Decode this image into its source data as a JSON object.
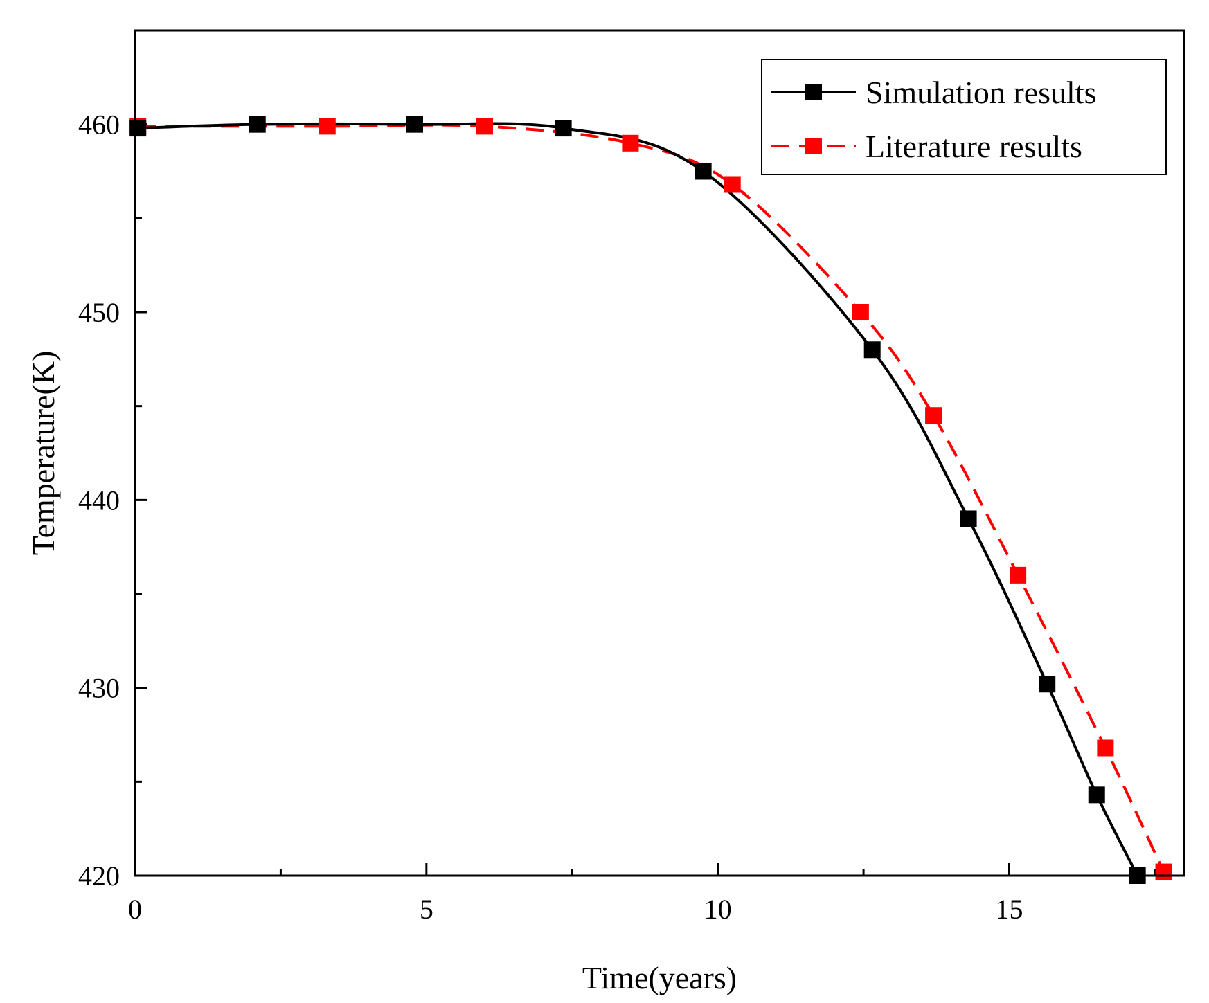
{
  "chart_data": {
    "type": "line",
    "title": "",
    "xlabel": "Time(years)",
    "ylabel": "Temperature(K)",
    "xlim": [
      0,
      18
    ],
    "ylim": [
      420,
      465
    ],
    "x_ticks": [
      0,
      5,
      10,
      15
    ],
    "y_ticks": [
      420,
      430,
      440,
      450,
      460
    ],
    "grid": false,
    "legend_position": "top-right",
    "series": [
      {
        "name": "Simulation results",
        "color": "#000000",
        "line_style": "solid",
        "marker": "square",
        "x": [
          0.05,
          2.1,
          4.8,
          7.35,
          9.75,
          12.65,
          14.3,
          15.65,
          16.5,
          17.2
        ],
        "y": [
          459.8,
          460.0,
          460.0,
          459.8,
          457.5,
          448.0,
          439.0,
          430.2,
          424.3,
          420.0
        ]
      },
      {
        "name": "Literature results",
        "color": "#ff0000",
        "line_style": "dashed",
        "marker": "square",
        "x": [
          0.05,
          3.3,
          6.0,
          8.5,
          10.25,
          12.45,
          13.7,
          15.15,
          16.65,
          17.65
        ],
        "y": [
          459.9,
          459.9,
          459.9,
          459.0,
          456.8,
          450.0,
          444.5,
          436.0,
          426.8,
          420.2
        ]
      }
    ]
  }
}
